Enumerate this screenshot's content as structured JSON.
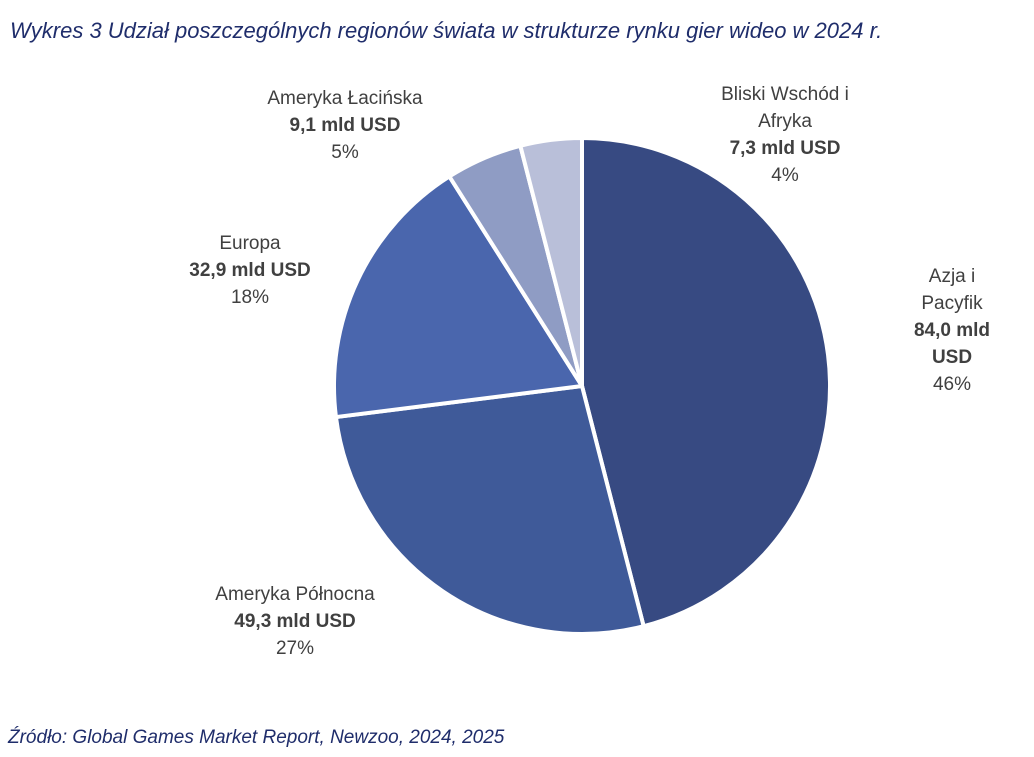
{
  "title": "Wykres 3 Udział poszczególnych regionów świata w strukturze rynku gier wideo w 2024 r.",
  "source": "Źródło: Global Games Market Report, Newzoo, 2024, 2025",
  "chart_data": {
    "type": "pie",
    "title": "Wykres 3 Udział poszczególnych regionów świata w strukturze rynku gier wideo w 2024 r.",
    "unit": "mld USD",
    "slices": [
      {
        "name": "Azja i Pacyfik",
        "value": 84.0,
        "value_label": "84,0 mld USD",
        "percent_label": "46%",
        "color": "#374a82"
      },
      {
        "name": "Ameryka Północna",
        "value": 49.3,
        "value_label": "49,3 mld USD",
        "percent_label": "27%",
        "color": "#3f5a99"
      },
      {
        "name": "Europa",
        "value": 32.9,
        "value_label": "32,9 mld USD",
        "percent_label": "18%",
        "color": "#4a66ad"
      },
      {
        "name": "Ameryka Łacińska",
        "value": 9.1,
        "value_label": "9,1 mld USD",
        "percent_label": "5%",
        "color": "#8f9cc4"
      },
      {
        "name": "Bliski Wschód i Afryka",
        "value": 7.3,
        "value_label": "7,3 mld USD",
        "percent_label": "4%",
        "color": "#b9bfd9"
      }
    ]
  }
}
